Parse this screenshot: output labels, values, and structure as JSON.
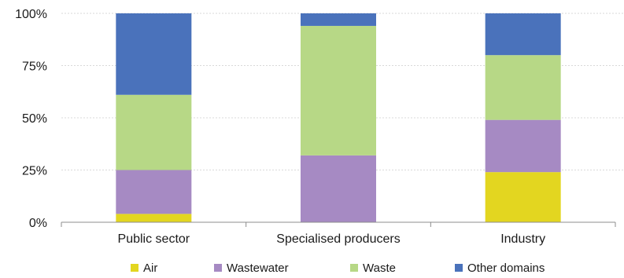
{
  "chart_data": {
    "type": "bar",
    "stacked": true,
    "categories": [
      "Public sector",
      "Specialised producers",
      "Industry"
    ],
    "series": [
      {
        "name": "Air",
        "color": "#e3d620",
        "values": [
          4,
          0,
          24
        ]
      },
      {
        "name": "Wastewater",
        "color": "#a68ac3",
        "values": [
          21,
          32,
          25
        ]
      },
      {
        "name": "Waste",
        "color": "#b7d886",
        "values": [
          36,
          62,
          31
        ]
      },
      {
        "name": "Other domains",
        "color": "#4a72bb",
        "values": [
          39,
          6,
          20
        ]
      }
    ],
    "yticks": [
      "0%",
      "25%",
      "50%",
      "75%",
      "100%"
    ],
    "ylim": [
      0,
      100
    ],
    "grid": true,
    "legend_position": "bottom"
  }
}
